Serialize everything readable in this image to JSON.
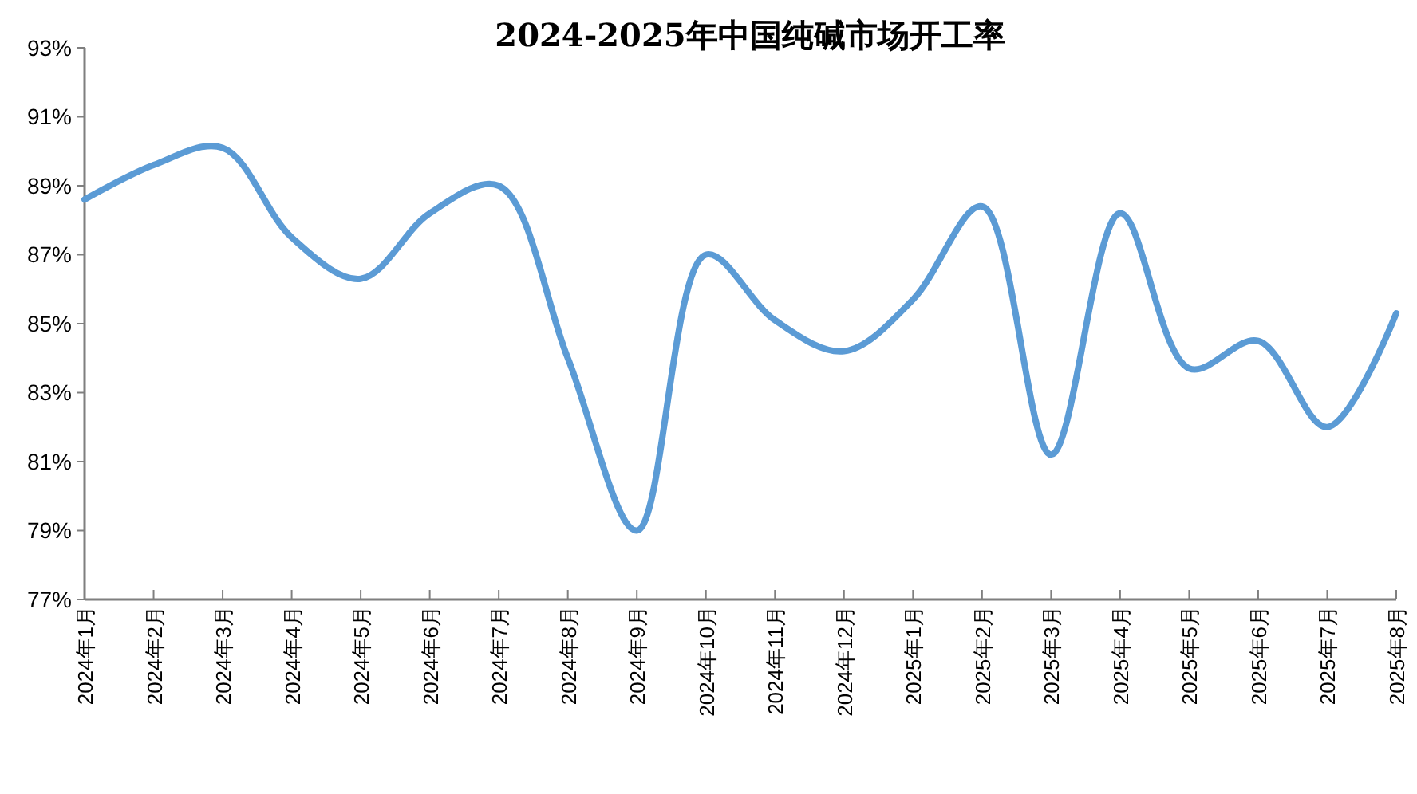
{
  "chart_data": {
    "type": "line",
    "title": "2024-2025年中国纯碱市场开工率",
    "categories": [
      "2024年1月",
      "2024年2月",
      "2024年3月",
      "2024年4月",
      "2024年5月",
      "2024年6月",
      "2024年7月",
      "2024年8月",
      "2024年9月",
      "2024年10月",
      "2024年11月",
      "2024年12月",
      "2025年1月",
      "2025年2月",
      "2025年3月",
      "2025年4月",
      "2025年5月",
      "2025年6月",
      "2025年7月",
      "2025年8月"
    ],
    "series": [
      {
        "color": "#5b9bd5",
        "values": [
          88.6,
          89.6,
          90.1,
          87.5,
          86.3,
          88.2,
          89.0,
          84.0,
          79.0,
          87.0,
          85.1,
          84.2,
          85.7,
          88.4,
          81.2,
          88.2,
          83.7,
          84.5,
          82.0,
          85.3
        ]
      }
    ],
    "ylim": [
      77,
      93
    ],
    "yticks": [
      {
        "value": 77,
        "label": "77%"
      },
      {
        "value": 79,
        "label": "79%"
      },
      {
        "value": 81,
        "label": "81%"
      },
      {
        "value": 83,
        "label": "83%"
      },
      {
        "value": 85,
        "label": "85%"
      },
      {
        "value": 87,
        "label": "87%"
      },
      {
        "value": 89,
        "label": "89%"
      },
      {
        "value": 91,
        "label": "91%"
      },
      {
        "value": 93,
        "label": "93%"
      }
    ],
    "grid": false,
    "marker": "none",
    "line_style": "solid"
  }
}
